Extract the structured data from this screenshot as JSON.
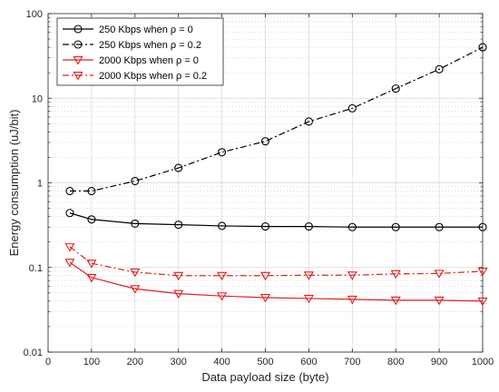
{
  "chart_data": {
    "type": "line",
    "xlabel": "Data payload size (byte)",
    "ylabel": "Energy consumption (uJ/bit)",
    "xlim": [
      0,
      1000
    ],
    "ylim": [
      0.01,
      100
    ],
    "yscale": "log",
    "grid": true,
    "legend_position": "top-left",
    "x_ticks": [
      "0",
      "100",
      "200",
      "300",
      "400",
      "500",
      "600",
      "700",
      "800",
      "900",
      "1000"
    ],
    "y_ticks": [
      "0.01",
      "0.1",
      "1",
      "10",
      "100"
    ],
    "x": [
      50,
      100,
      200,
      300,
      400,
      500,
      600,
      700,
      800,
      900,
      1000
    ],
    "series": [
      {
        "name": "250 Kbps when ρ = 0",
        "color": "#000000",
        "line": "solid",
        "marker": "circle",
        "values": [
          0.44,
          0.37,
          0.33,
          0.32,
          0.31,
          0.305,
          0.305,
          0.3,
          0.3,
          0.3,
          0.3
        ]
      },
      {
        "name": "250 Kbps when ρ = 0.2",
        "color": "#000000",
        "line": "dashdot",
        "marker": "circle",
        "values": [
          0.8,
          0.8,
          1.05,
          1.5,
          2.3,
          3.1,
          5.3,
          7.6,
          13,
          22,
          40
        ]
      },
      {
        "name": "2000 Kbps when ρ = 0",
        "color": "#e02020",
        "line": "solid",
        "marker": "triangle-down",
        "values": [
          0.115,
          0.076,
          0.056,
          0.049,
          0.046,
          0.044,
          0.043,
          0.042,
          0.041,
          0.041,
          0.04
        ]
      },
      {
        "name": "2000 Kbps when ρ = 0.2",
        "color": "#e02020",
        "line": "dashdot",
        "marker": "triangle-down",
        "values": [
          0.175,
          0.112,
          0.088,
          0.08,
          0.08,
          0.08,
          0.081,
          0.081,
          0.084,
          0.085,
          0.09
        ]
      }
    ]
  }
}
